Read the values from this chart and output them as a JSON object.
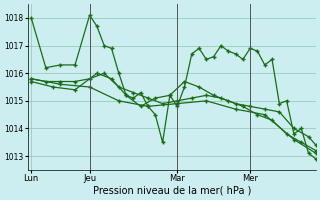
{
  "xlabel": "Pression niveau de la mer( hPa )",
  "bg_color": "#cceef0",
  "grid_color": "#99ccbb",
  "line_color": "#1a6b1a",
  "ylim": [
    1012.5,
    1018.5
  ],
  "yticks": [
    1013,
    1014,
    1015,
    1016,
    1017,
    1018
  ],
  "day_labels": [
    "Lun",
    "Jeu",
    "Mar",
    "Mer"
  ],
  "day_positions": [
    0,
    8,
    20,
    30
  ],
  "vline_positions": [
    8,
    20,
    30
  ],
  "n_points": 40,
  "series": [
    {
      "x": [
        0,
        2,
        4,
        6,
        8,
        9,
        10,
        11,
        12,
        13,
        14,
        15,
        16,
        17,
        18,
        19,
        20,
        21,
        22,
        23,
        24,
        25,
        26,
        27,
        28,
        29,
        30,
        31,
        32,
        33,
        34,
        35,
        36,
        37,
        38,
        39
      ],
      "y": [
        1018.0,
        1016.2,
        1016.3,
        1016.3,
        1018.1,
        1017.7,
        1017.0,
        1016.9,
        1016.0,
        1015.2,
        1015.1,
        1015.3,
        1014.8,
        1014.5,
        1013.5,
        1015.2,
        1014.8,
        1015.5,
        1016.7,
        1016.9,
        1016.5,
        1016.6,
        1017.0,
        1016.8,
        1016.7,
        1016.5,
        1016.9,
        1016.8,
        1016.3,
        1016.5,
        1014.9,
        1015.0,
        1013.8,
        1014.0,
        1013.1,
        1012.9
      ]
    },
    {
      "x": [
        0,
        2,
        4,
        6,
        8,
        10,
        12,
        14,
        16,
        18,
        20,
        22,
        24,
        26,
        28,
        30,
        32,
        34,
        36,
        38,
        39
      ],
      "y": [
        1015.8,
        1015.7,
        1015.7,
        1015.7,
        1015.8,
        1016.0,
        1015.5,
        1015.3,
        1015.1,
        1014.9,
        1015.0,
        1015.1,
        1015.2,
        1015.1,
        1014.9,
        1014.8,
        1014.7,
        1014.6,
        1014.0,
        1013.7,
        1013.4
      ]
    },
    {
      "x": [
        0,
        3,
        6,
        9,
        11,
        13,
        15,
        17,
        19,
        21,
        23,
        25,
        27,
        29,
        31,
        33,
        35,
        37,
        39
      ],
      "y": [
        1015.7,
        1015.5,
        1015.4,
        1016.0,
        1015.8,
        1015.2,
        1014.8,
        1015.1,
        1015.2,
        1015.7,
        1015.5,
        1015.2,
        1015.0,
        1014.8,
        1014.5,
        1014.3,
        1013.8,
        1013.5,
        1013.2
      ]
    },
    {
      "x": [
        0,
        4,
        8,
        12,
        16,
        20,
        24,
        28,
        32,
        36,
        39
      ],
      "y": [
        1015.8,
        1015.6,
        1015.5,
        1015.0,
        1014.8,
        1014.9,
        1015.0,
        1014.7,
        1014.5,
        1013.6,
        1013.1
      ]
    }
  ]
}
